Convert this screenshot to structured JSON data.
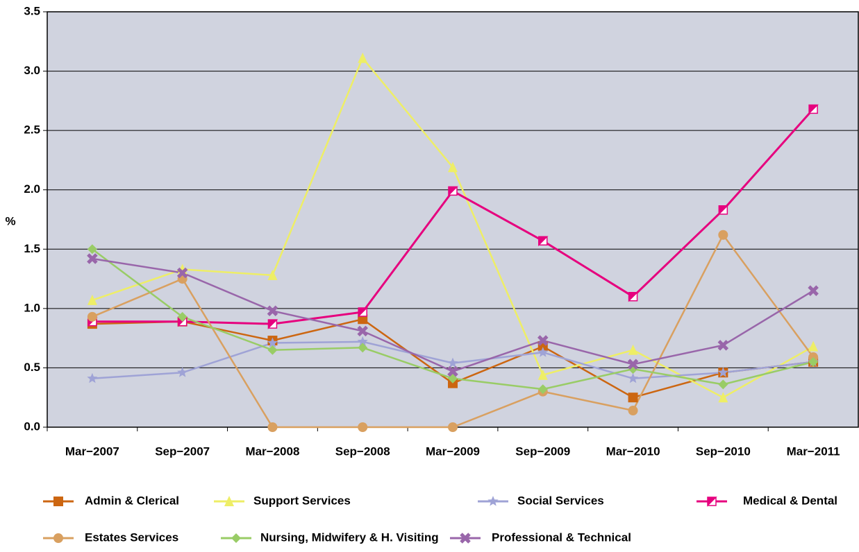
{
  "chart_data": {
    "type": "line",
    "y_label": "%",
    "categories": [
      "Mar−2007",
      "Sep−2007",
      "Mar−2008",
      "Sep−2008",
      "Mar−2009",
      "Sep−2009",
      "Mar−2010",
      "Sep−2010",
      "Mar−2011"
    ],
    "ylim": [
      0,
      3.5
    ],
    "yticks": [
      {
        "value": 0,
        "label": "0.0"
      },
      0.5,
      {
        "value": 1,
        "label": "1.0"
      },
      1.5,
      {
        "value": 2,
        "label": "2.0"
      },
      2.5,
      {
        "value": 3,
        "label": "3.0"
      },
      3.5
    ],
    "grid": true,
    "legend": "bottom",
    "series": [
      {
        "name": "Admin & Clerical",
        "color": "#cc6611",
        "marker": "square",
        "values": [
          0.87,
          0.89,
          0.73,
          0.91,
          0.37,
          0.68,
          0.25,
          0.46,
          0.55
        ]
      },
      {
        "name": "Support Services",
        "color": "#eeee66",
        "marker": "triangle",
        "values": [
          1.07,
          1.33,
          1.28,
          3.11,
          2.19,
          0.44,
          0.65,
          0.25,
          0.68
        ]
      },
      {
        "name": "Social Services",
        "color": "#9fa3d6",
        "marker": "star",
        "values": [
          0.41,
          0.46,
          0.71,
          0.72,
          0.54,
          0.63,
          0.41,
          0.46,
          0.55
        ]
      },
      {
        "name": "Medical & Dental",
        "color": "#e6007e",
        "marker": "flag",
        "values": [
          0.89,
          0.89,
          0.87,
          0.97,
          1.99,
          1.57,
          1.1,
          1.83,
          2.68
        ]
      },
      {
        "name": "Estates Services",
        "color": "#d9a060",
        "marker": "circle",
        "values": [
          0.93,
          1.25,
          0.0,
          0.0,
          0.0,
          0.3,
          0.14,
          1.62,
          0.59
        ]
      },
      {
        "name": "Nursing, Midwifery & H. Visiting",
        "color": "#99cc66",
        "marker": "diamond",
        "values": [
          1.5,
          0.93,
          0.65,
          0.67,
          0.41,
          0.32,
          0.49,
          0.36,
          0.55
        ]
      },
      {
        "name": "Professional & Technical",
        "color": "#9966aa",
        "marker": "cross",
        "values": [
          1.42,
          1.3,
          0.98,
          0.81,
          0.47,
          0.73,
          0.53,
          0.69,
          1.15
        ]
      }
    ]
  }
}
